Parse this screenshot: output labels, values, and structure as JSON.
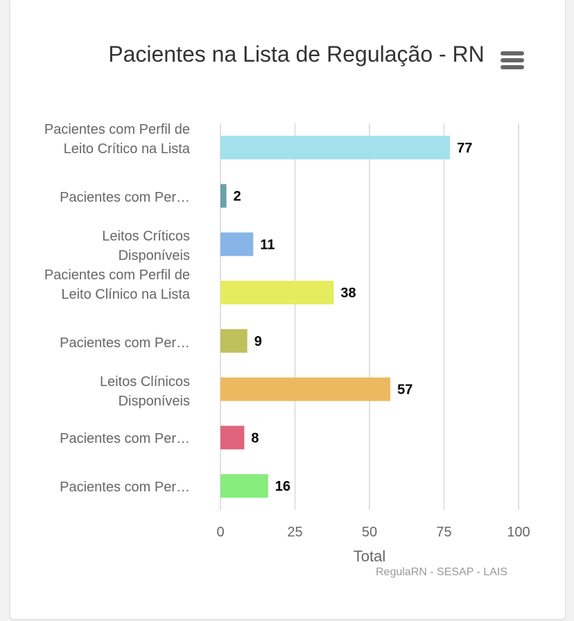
{
  "chart_data": {
    "type": "bar",
    "orientation": "horizontal",
    "title": "Pacientes na Lista de Regulação - RN",
    "categories": [
      "Pacientes com Perfil de Leito Crítico na Lista",
      "Pacientes com Per…",
      "Leitos Críticos Disponíveis",
      "Pacientes com Perfil de Leito Clínico na Lista",
      "Pacientes com Per…",
      "Leitos Clínicos Disponíveis",
      "Pacientes com Per…",
      "Pacientes com Per…"
    ],
    "values": [
      77,
      2,
      11,
      38,
      9,
      57,
      8,
      16
    ],
    "colors": [
      "#a3e1ec",
      "#6aa1ab",
      "#88b4e7",
      "#e5ec5e",
      "#bec15b",
      "#ecb960",
      "#e0647d",
      "#87ed7d"
    ],
    "xlabel": "Total",
    "ylabel": "",
    "xlim": [
      0,
      100
    ],
    "xticks": [
      0,
      25,
      50,
      75,
      100
    ],
    "grid": true,
    "legend": "none",
    "data_labels": true,
    "credits": "RegulaRN - SESAP - LAIS"
  },
  "menu_icon": "hamburger-menu-icon"
}
